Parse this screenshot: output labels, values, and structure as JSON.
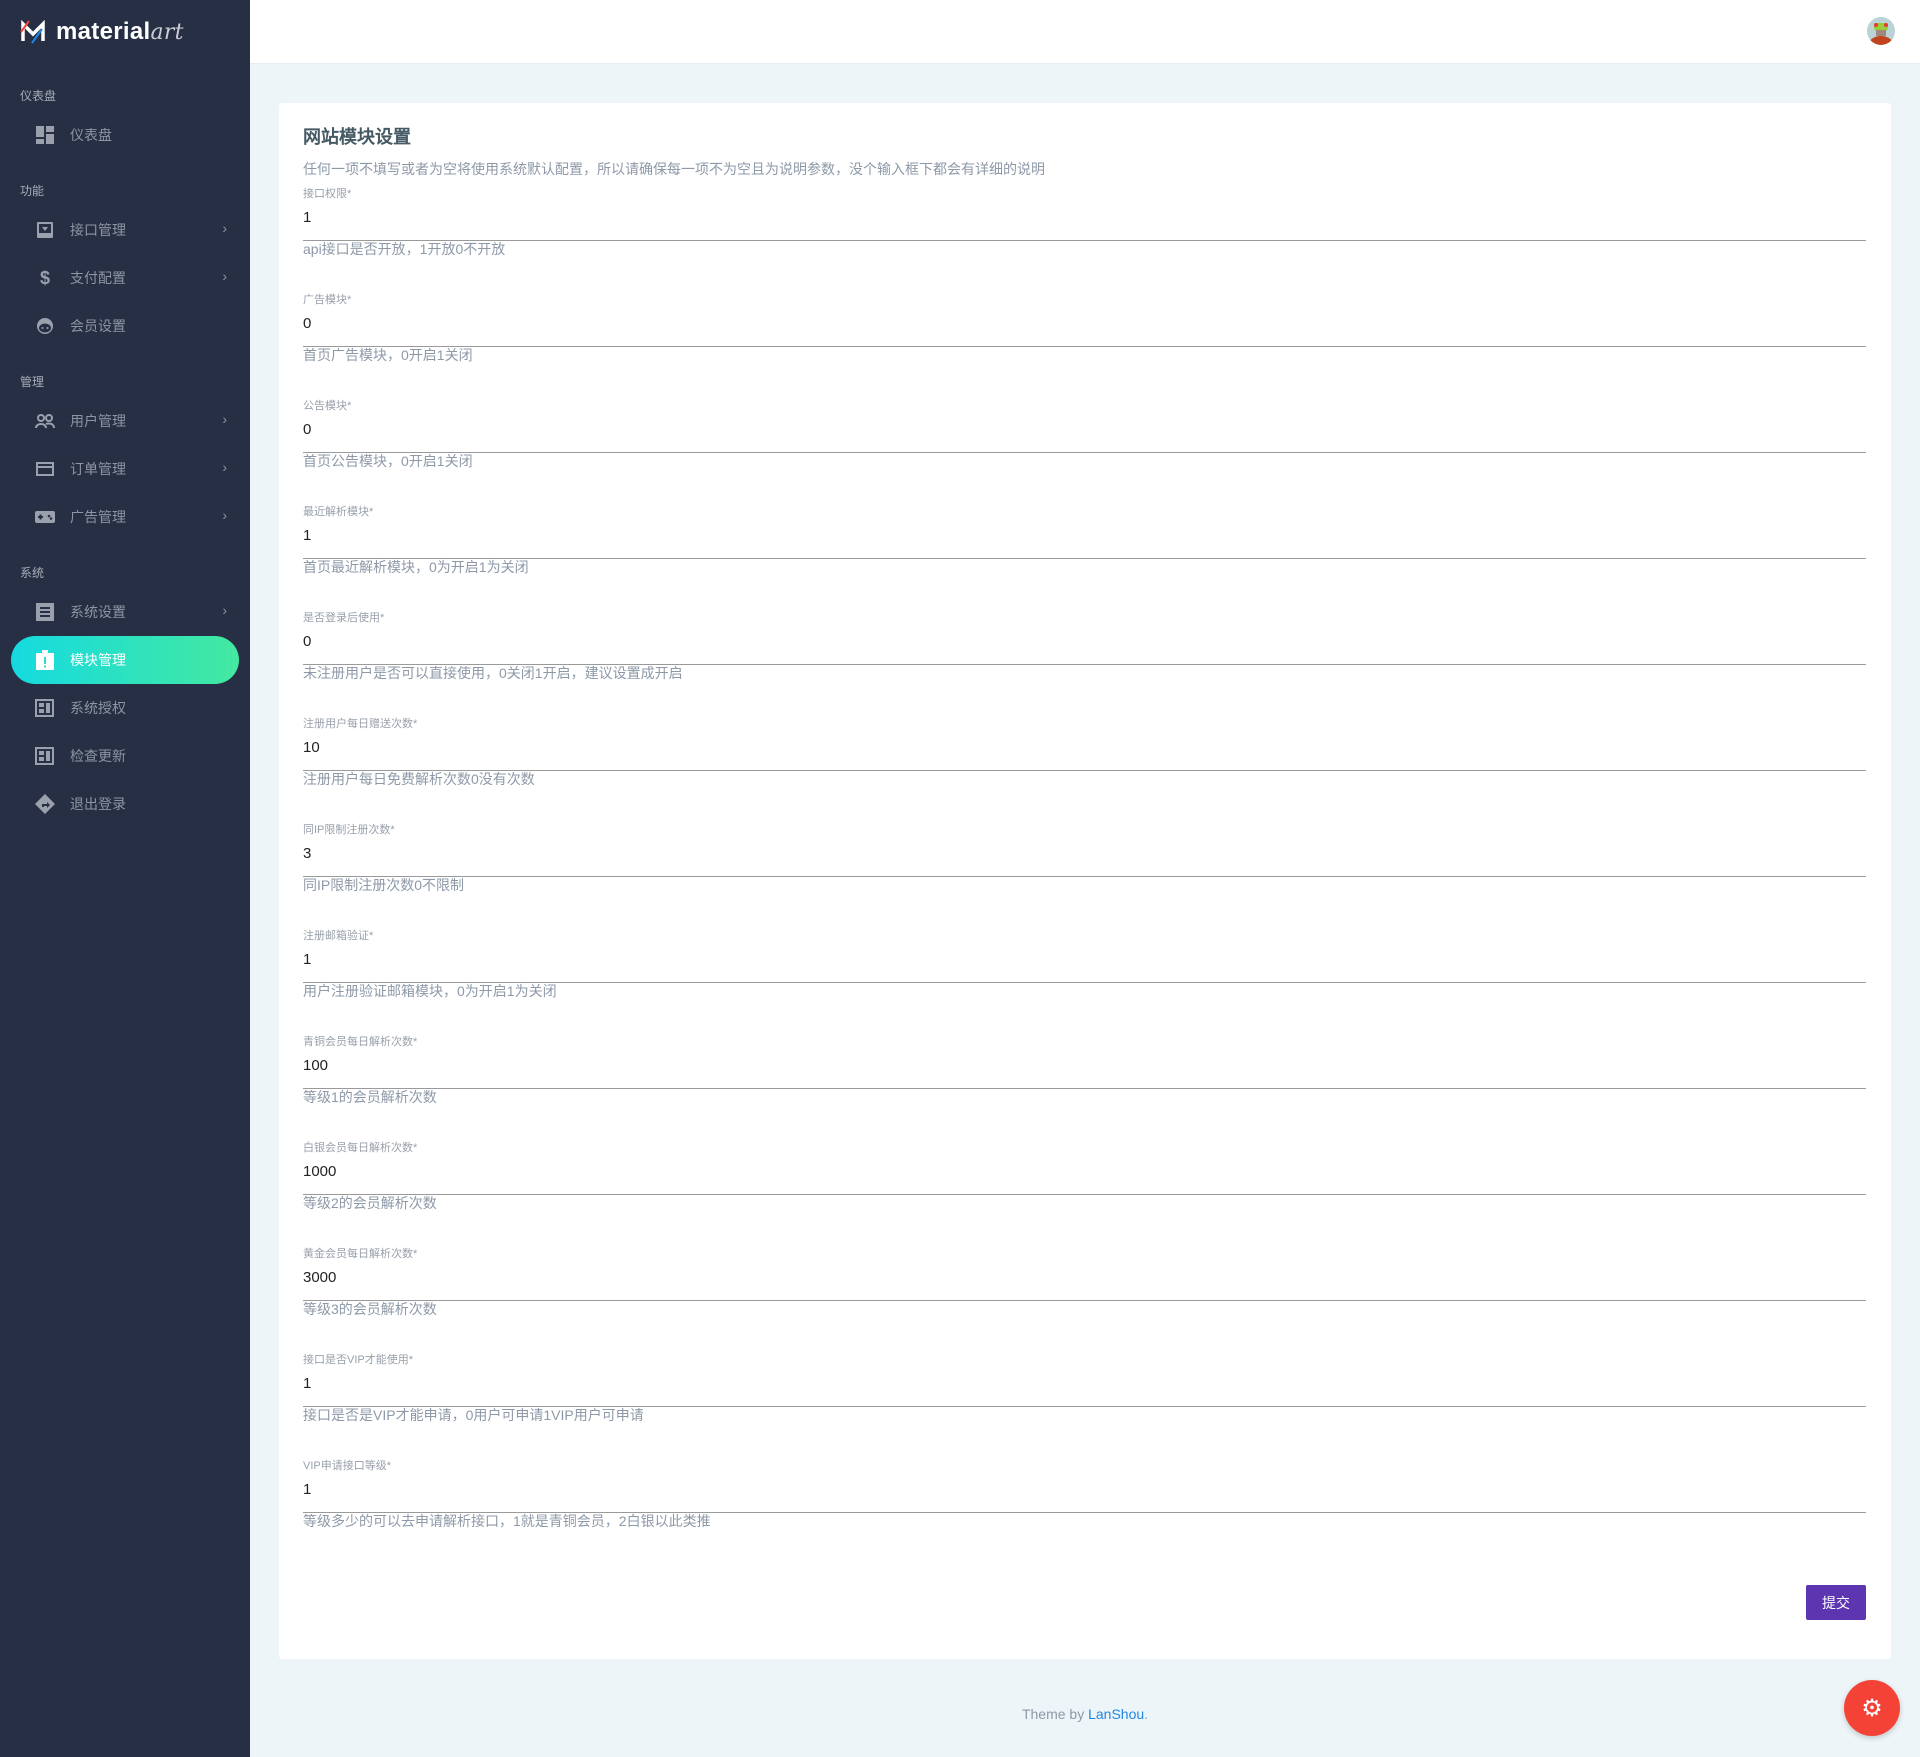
{
  "brand": {
    "name": "material",
    "name_suffix": "art"
  },
  "sidebar": {
    "sections": [
      {
        "label": "仪表盘",
        "items": [
          {
            "label": "仪表盘",
            "icon": "dashboard-icon",
            "chevron": false
          }
        ]
      },
      {
        "label": "功能",
        "items": [
          {
            "label": "接口管理",
            "icon": "inbox-download-icon",
            "chevron": true
          },
          {
            "label": "支付配置",
            "icon": "dollar-icon",
            "chevron": true
          },
          {
            "label": "会员设置",
            "icon": "face-icon",
            "chevron": false
          }
        ]
      },
      {
        "label": "管理",
        "items": [
          {
            "label": "用户管理",
            "icon": "users-icon",
            "chevron": true
          },
          {
            "label": "订单管理",
            "icon": "credit-card-icon",
            "chevron": true
          },
          {
            "label": "广告管理",
            "icon": "gamepad-icon",
            "chevron": true
          }
        ]
      },
      {
        "label": "系统",
        "items": [
          {
            "label": "系统设置",
            "icon": "list-icon",
            "chevron": true
          },
          {
            "label": "模块管理",
            "icon": "clipboard-alert-icon",
            "chevron": false,
            "active": true
          },
          {
            "label": "系统授权",
            "icon": "chip-icon",
            "chevron": false
          },
          {
            "label": "检查更新",
            "icon": "chip-icon",
            "chevron": false
          },
          {
            "label": "退出登录",
            "icon": "directions-icon",
            "chevron": false
          }
        ]
      }
    ]
  },
  "main": {
    "title": "网站模块设置",
    "subtitle": "任何一项不填写或者为空将使用系统默认配置，所以请确保每一项不为空且为说明参数，没个输入框下都会有详细的说明",
    "fields": [
      {
        "label": "接口权限*",
        "value": "1",
        "help": "api接口是否开放，1开放0不开放"
      },
      {
        "label": "广告模块*",
        "value": "0",
        "help": "首页广告模块，0开启1关闭"
      },
      {
        "label": "公告模块*",
        "value": "0",
        "help": "首页公告模块，0开启1关闭"
      },
      {
        "label": "最近解析模块*",
        "value": "1",
        "help": "首页最近解析模块，0为开启1为关闭"
      },
      {
        "label": "是否登录后使用*",
        "value": "0",
        "help": "未注册用户是否可以直接使用，0关闭1开启，建议设置成开启"
      },
      {
        "label": "注册用户每日赠送次数*",
        "value": "10",
        "help": "注册用户每日免费解析次数0没有次数"
      },
      {
        "label": "同IP限制注册次数*",
        "value": "3",
        "help": "同IP限制注册次数0不限制"
      },
      {
        "label": "注册邮箱验证*",
        "value": "1",
        "help": "用户注册验证邮箱模块，0为开启1为关闭"
      },
      {
        "label": "青铜会员每日解析次数*",
        "value": "100",
        "help": "等级1的会员解析次数"
      },
      {
        "label": "白银会员每日解析次数*",
        "value": "1000",
        "help": "等级2的会员解析次数"
      },
      {
        "label": "黄金会员每日解析次数*",
        "value": "3000",
        "help": "等级3的会员解析次数"
      },
      {
        "label": "接口是否VIP才能使用*",
        "value": "1",
        "help": "接口是否是VIP才能申请，0用户可申请1VIP用户可申请"
      },
      {
        "label": "VIP申请接口等级*",
        "value": "1",
        "help": "等级多少的可以去申请解析接口，1就是青铜会员，2白银以此类推"
      }
    ],
    "submit_label": "提交"
  },
  "footer": {
    "prefix": "Theme by ",
    "link": "LanShou",
    "suffix": "."
  },
  "colors": {
    "sidebar": "#262f43",
    "active_gradient_start": "#15dae0",
    "active_gradient_end": "#44e9a0",
    "submit": "#5e35b1",
    "fab": "#f44336",
    "link": "#1e88e5"
  }
}
